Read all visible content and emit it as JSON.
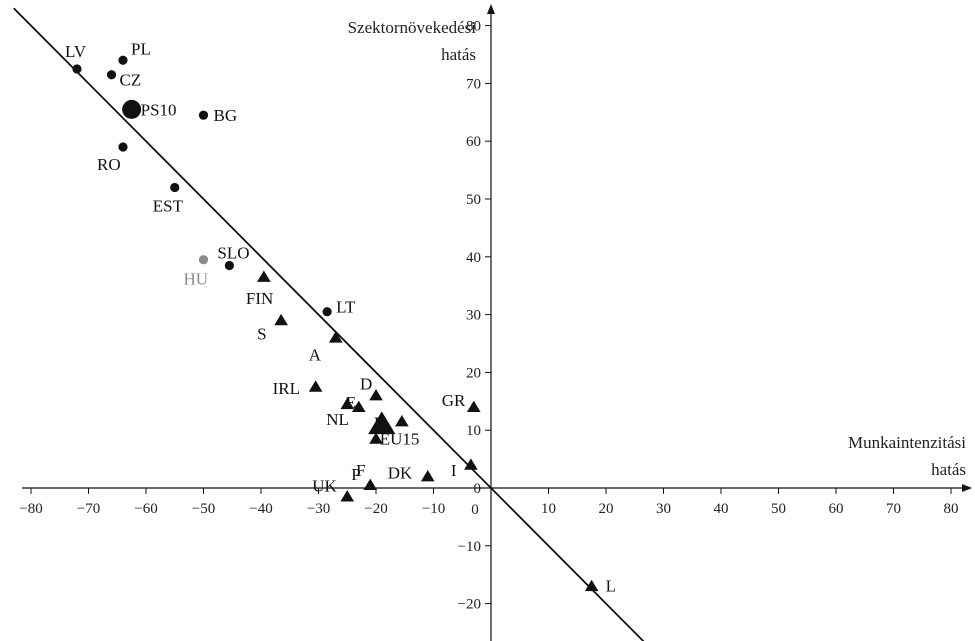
{
  "chart_data": {
    "type": "scatter",
    "title": "",
    "xlabel": [
      "Munkaintenzitási",
      "hatás"
    ],
    "ylabel": [
      "Szektornövekedési",
      "hatás"
    ],
    "xlim": [
      -80,
      80
    ],
    "ylim": [
      -25,
      80
    ],
    "x_ticks": [
      "−80",
      "−70",
      "−60",
      "−50",
      "−40",
      "−30",
      "−20",
      "−10",
      "0",
      "10",
      "20",
      "30",
      "40",
      "50",
      "60",
      "70",
      "80"
    ],
    "y_ticks": [
      "−20",
      "−10",
      "0",
      "10",
      "20",
      "30",
      "40",
      "50",
      "60",
      "70",
      "80"
    ],
    "x_tick_values": [
      -80,
      -70,
      -60,
      -50,
      -40,
      -30,
      -20,
      -10,
      0,
      10,
      20,
      30,
      40,
      50,
      60,
      70,
      80
    ],
    "y_tick_values": [
      -20,
      -10,
      0,
      10,
      20,
      30,
      40,
      50,
      60,
      70,
      80
    ],
    "reference_line": {
      "slope": -1,
      "intercept": 0
    },
    "colors": {
      "default": "#111111",
      "highlight": "#8a8a8a"
    },
    "points": [
      {
        "label": "LV",
        "x": -72,
        "y": 72.5,
        "marker": "circle",
        "size": "small"
      },
      {
        "label": "PL",
        "x": -64,
        "y": 74,
        "marker": "circle",
        "size": "small"
      },
      {
        "label": "CZ",
        "x": -66,
        "y": 71.5,
        "marker": "circle",
        "size": "small"
      },
      {
        "label": "PS10",
        "x": -62.5,
        "y": 65.5,
        "marker": "circle",
        "size": "large"
      },
      {
        "label": "BG",
        "x": -50,
        "y": 64.5,
        "marker": "circle",
        "size": "small"
      },
      {
        "label": "RO",
        "x": -64,
        "y": 59,
        "marker": "circle",
        "size": "small"
      },
      {
        "label": "EST",
        "x": -55,
        "y": 52,
        "marker": "circle",
        "size": "small"
      },
      {
        "label": "HU",
        "x": -50,
        "y": 39.5,
        "marker": "circle",
        "size": "small",
        "highlight": true
      },
      {
        "label": "SLO",
        "x": -45.5,
        "y": 38.5,
        "marker": "circle",
        "size": "small"
      },
      {
        "label": "FIN",
        "x": -39.5,
        "y": 36.5,
        "marker": "triangle",
        "size": "small"
      },
      {
        "label": "LT",
        "x": -28.5,
        "y": 30.5,
        "marker": "circle",
        "size": "small"
      },
      {
        "label": "S",
        "x": -36.5,
        "y": 29,
        "marker": "triangle",
        "size": "small"
      },
      {
        "label": "A",
        "x": -27,
        "y": 26,
        "marker": "triangle",
        "size": "small"
      },
      {
        "label": "IRL",
        "x": -30.5,
        "y": 17.5,
        "marker": "triangle",
        "size": "small"
      },
      {
        "label": "D",
        "x": -20,
        "y": 16,
        "marker": "triangle",
        "size": "small"
      },
      {
        "label": "NL",
        "x": -25,
        "y": 14.5,
        "marker": "triangle",
        "size": "small"
      },
      {
        "label": "E",
        "x": -23,
        "y": 14,
        "marker": "triangle",
        "size": "small"
      },
      {
        "label": "B",
        "x": -15.5,
        "y": 11.5,
        "marker": "triangle",
        "size": "small"
      },
      {
        "label": "EU15",
        "x": -19,
        "y": 11,
        "marker": "triangle",
        "size": "large"
      },
      {
        "label": "F",
        "x": -20,
        "y": 8.5,
        "marker": "triangle",
        "size": "small"
      },
      {
        "label": "GR",
        "x": -3,
        "y": 14,
        "marker": "triangle",
        "size": "small"
      },
      {
        "label": "DK",
        "x": -11,
        "y": 2,
        "marker": "triangle",
        "size": "small"
      },
      {
        "label": "I",
        "x": -3.5,
        "y": 4,
        "marker": "triangle",
        "size": "small"
      },
      {
        "label": "UK",
        "x": -25,
        "y": -1.5,
        "marker": "triangle",
        "size": "small"
      },
      {
        "label": "P",
        "x": -21,
        "y": 0.5,
        "marker": "triangle",
        "size": "small"
      },
      {
        "label": "L",
        "x": 17.5,
        "y": -17,
        "marker": "triangle",
        "size": "small"
      }
    ]
  }
}
